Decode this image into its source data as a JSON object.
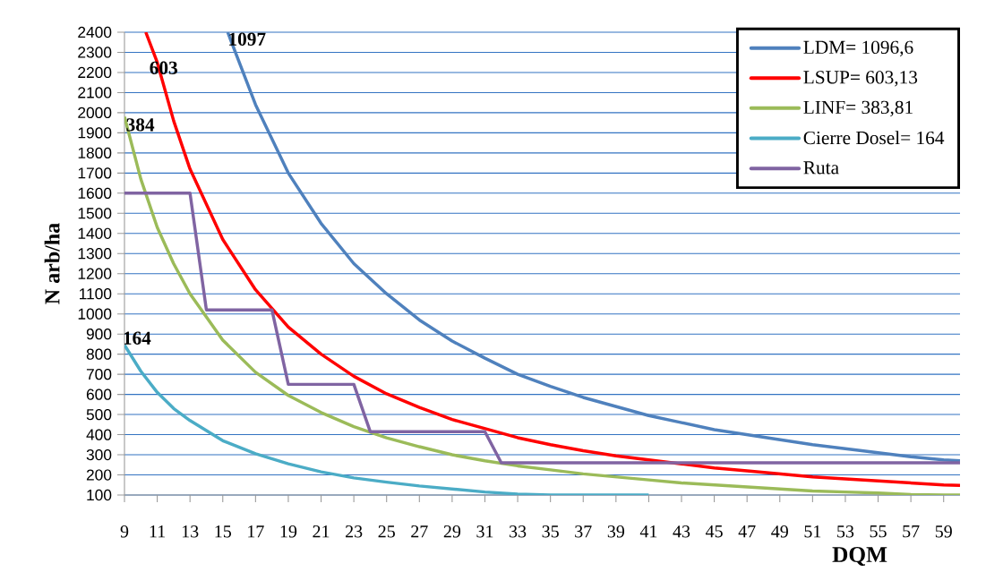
{
  "chart_data": {
    "type": "line",
    "xlabel": "DQM",
    "ylabel": "N arb/ha",
    "xlim": [
      9,
      60
    ],
    "xticks": [
      9,
      11,
      13,
      15,
      17,
      19,
      21,
      23,
      25,
      27,
      29,
      31,
      33,
      35,
      37,
      39,
      41,
      43,
      45,
      47,
      49,
      51,
      53,
      55,
      57,
      59
    ],
    "ylim": [
      100,
      2400
    ],
    "yticks": [
      100,
      200,
      300,
      400,
      500,
      600,
      700,
      800,
      900,
      1000,
      1100,
      1200,
      1300,
      1400,
      1500,
      1600,
      1700,
      1800,
      1900,
      2000,
      2100,
      2200,
      2300,
      2400
    ],
    "grid": "y",
    "legend": "top right",
    "marker": "none",
    "line_style": "solid",
    "series": [
      {
        "name": "LDM= 1096,6",
        "color": "#4f81bd",
        "x": [
          15.3,
          17,
          19,
          21,
          23,
          25,
          27,
          29,
          31,
          33,
          35,
          37,
          39,
          41,
          43,
          45,
          47,
          49,
          51,
          53,
          55,
          57,
          59,
          60
        ],
        "values": [
          2400,
          2040,
          1700,
          1450,
          1250,
          1100,
          970,
          865,
          780,
          700,
          640,
          585,
          540,
          495,
          460,
          425,
          400,
          375,
          350,
          330,
          310,
          290,
          275,
          270
        ]
      },
      {
        "name": "LSUP= 603,13",
        "color": "#ff0000",
        "x": [
          10.3,
          11,
          12,
          13,
          15,
          17,
          19,
          21,
          23,
          25,
          27,
          29,
          31,
          33,
          35,
          37,
          39,
          41,
          43,
          45,
          47,
          49,
          51,
          53,
          55,
          57,
          59,
          60
        ],
        "values": [
          2400,
          2250,
          1960,
          1720,
          1370,
          1120,
          935,
          800,
          690,
          603,
          535,
          475,
          430,
          385,
          350,
          320,
          295,
          275,
          255,
          235,
          220,
          205,
          190,
          180,
          170,
          160,
          150,
          148
        ]
      },
      {
        "name": "LINF= 383,81",
        "color": "#9bbb59",
        "x": [
          9,
          10,
          11,
          12,
          13,
          15,
          17,
          19,
          21,
          23,
          25,
          27,
          29,
          31,
          33,
          35,
          37,
          39,
          41,
          43,
          45,
          47,
          49,
          51,
          53,
          55,
          57,
          59,
          60
        ],
        "values": [
          1980,
          1670,
          1430,
          1250,
          1100,
          870,
          710,
          595,
          510,
          440,
          384,
          340,
          300,
          270,
          245,
          225,
          205,
          190,
          175,
          160,
          150,
          140,
          130,
          120,
          115,
          110,
          102,
          100,
          100
        ]
      },
      {
        "name": "Cierre Dosel= 164",
        "color": "#4bacc6",
        "x": [
          9,
          10,
          11,
          12,
          13,
          15,
          17,
          19,
          21,
          23,
          25,
          27,
          29,
          31,
          33,
          35,
          38,
          41
        ],
        "values": [
          845,
          715,
          610,
          530,
          470,
          370,
          305,
          255,
          215,
          185,
          164,
          145,
          130,
          115,
          105,
          100,
          100,
          100
        ]
      },
      {
        "name": "Ruta",
        "color": "#8064a2",
        "x": [
          9,
          13,
          14,
          18,
          19,
          23,
          24,
          31,
          32,
          60
        ],
        "values": [
          1600,
          1600,
          1020,
          1020,
          650,
          650,
          415,
          415,
          260,
          260
        ]
      }
    ],
    "annotations": [
      "1097",
      "603",
      "384",
      "164"
    ]
  }
}
